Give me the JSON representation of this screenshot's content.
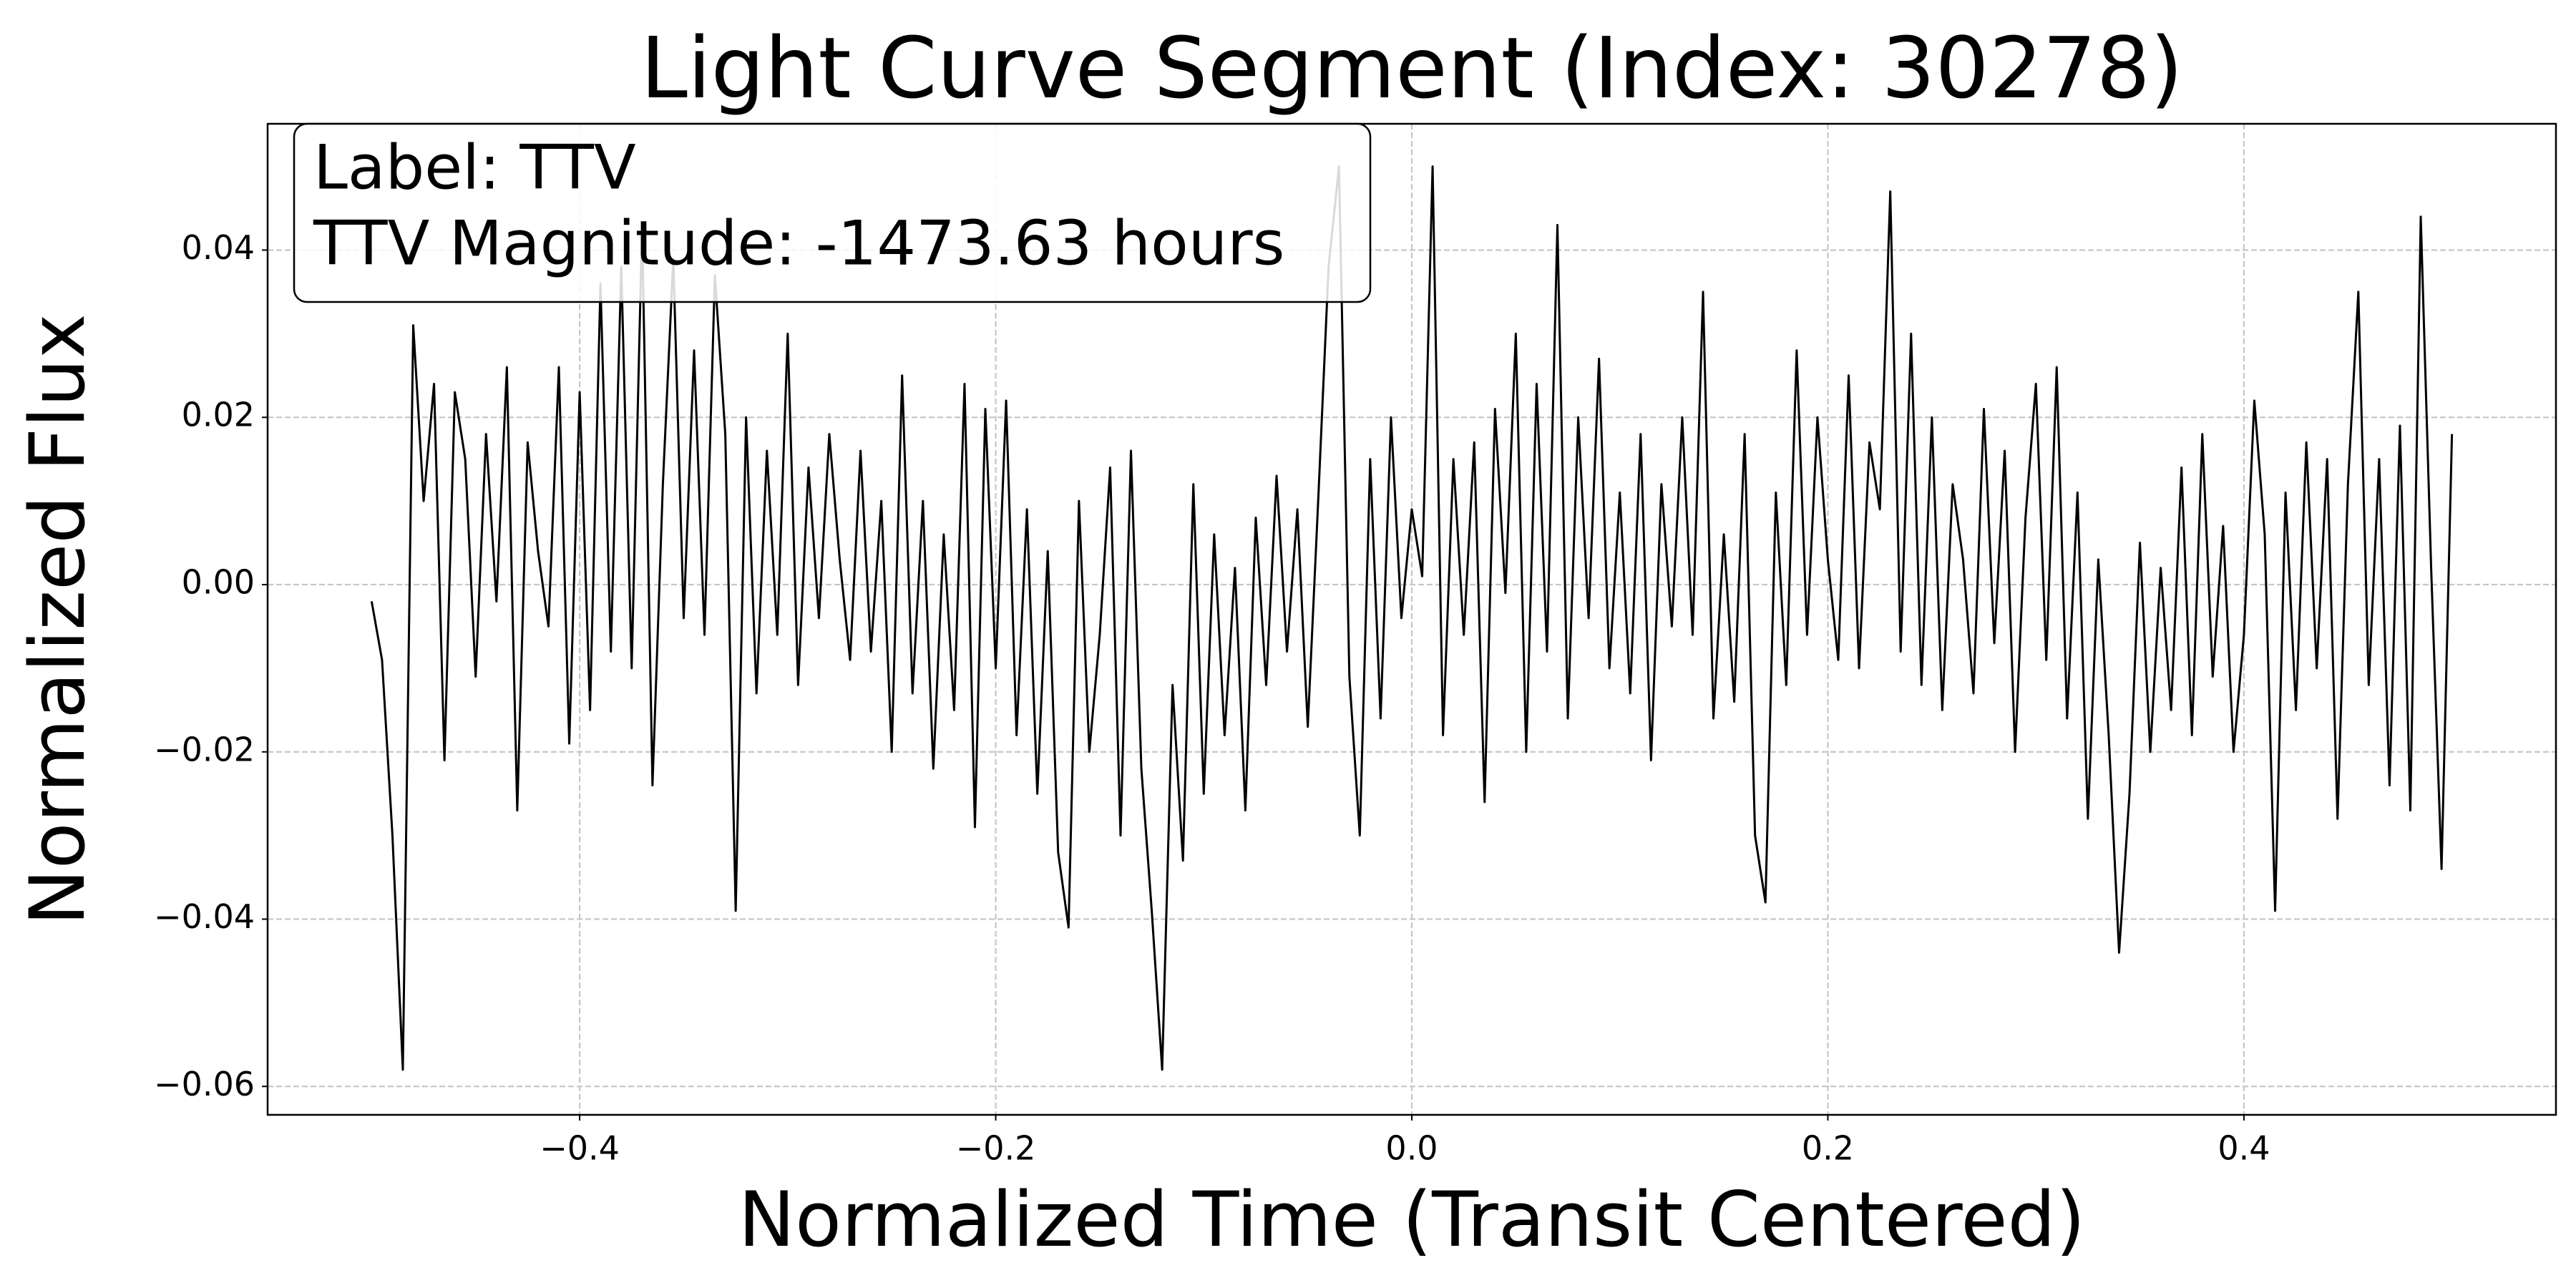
{
  "chart_data": {
    "type": "line",
    "title": "Light Curve Segment (Index: 30278)",
    "x_label": "Normalized Time (Transit Centered)",
    "y_label": "Normalized Flux",
    "annotations": [
      "Label: TTV",
      "TTV Magnitude: -1473.63 hours"
    ],
    "color": "#000000",
    "grid": true,
    "xlim": [
      -0.55,
      0.55
    ],
    "ylim": [
      -0.0634,
      0.0551
    ],
    "xticks": [
      {
        "value": -0.4,
        "label": "−0.4"
      },
      {
        "value": -0.2,
        "label": "−0.2"
      },
      {
        "value": 0,
        "label": "0.0"
      },
      0.2,
      0.4
    ],
    "yticks": [
      {
        "value": -0.06,
        "label": "−0.06"
      },
      {
        "value": -0.04,
        "label": "−0.04"
      },
      {
        "value": -0.02,
        "label": "−0.02"
      },
      {
        "value": 0,
        "label": "0.00"
      },
      0.02,
      0.04
    ],
    "x": [
      -0.5,
      -0.495,
      -0.49,
      -0.485,
      -0.48,
      -0.475,
      -0.47,
      -0.465,
      -0.46,
      -0.455,
      -0.45,
      -0.445,
      -0.44,
      -0.435,
      -0.43,
      -0.425,
      -0.42,
      -0.415,
      -0.41,
      -0.405,
      -0.4,
      -0.395,
      -0.39,
      -0.385,
      -0.38,
      -0.375,
      -0.37,
      -0.365,
      -0.36,
      -0.355,
      -0.35,
      -0.345,
      -0.34,
      -0.335,
      -0.33,
      -0.325,
      -0.32,
      -0.315,
      -0.31,
      -0.305,
      -0.3,
      -0.295,
      -0.29,
      -0.285,
      -0.28,
      -0.275,
      -0.27,
      -0.265,
      -0.26,
      -0.255,
      -0.25,
      -0.245,
      -0.24,
      -0.235,
      -0.23,
      -0.225,
      -0.22,
      -0.215,
      -0.21,
      -0.205,
      -0.2,
      -0.195,
      -0.19,
      -0.185,
      -0.18,
      -0.175,
      -0.17,
      -0.165,
      -0.16,
      -0.155,
      -0.15,
      -0.145,
      -0.14,
      -0.135,
      -0.13,
      -0.125,
      -0.12,
      -0.115,
      -0.11,
      -0.105,
      -0.1,
      -0.095,
      -0.09,
      -0.085,
      -0.08,
      -0.075,
      -0.07,
      -0.065,
      -0.06,
      -0.055,
      -0.05,
      -0.045,
      -0.04,
      -0.035,
      -0.03,
      -0.025,
      -0.02,
      -0.015,
      -0.01,
      -0.005,
      0,
      0.005,
      0.01,
      0.015,
      0.02,
      0.025,
      0.03,
      0.035,
      0.04,
      0.045,
      0.05,
      0.055,
      0.06,
      0.065,
      0.07,
      0.075,
      0.08,
      0.085,
      0.09,
      0.095,
      0.1,
      0.105,
      0.11,
      0.115,
      0.12,
      0.125,
      0.13,
      0.135,
      0.14,
      0.145,
      0.15,
      0.155,
      0.16,
      0.165,
      0.17,
      0.175,
      0.18,
      0.185,
      0.19,
      0.195,
      0.2,
      0.205,
      0.21,
      0.215,
      0.22,
      0.225,
      0.23,
      0.235,
      0.24,
      0.245,
      0.25,
      0.255,
      0.26,
      0.265,
      0.27,
      0.275,
      0.28,
      0.285,
      0.29,
      0.295,
      0.3,
      0.305,
      0.31,
      0.315,
      0.32,
      0.325,
      0.33,
      0.335,
      0.34,
      0.345,
      0.35,
      0.355,
      0.36,
      0.365,
      0.37,
      0.375,
      0.38,
      0.385,
      0.39,
      0.395,
      0.4,
      0.405,
      0.41,
      0.415,
      0.42,
      0.425,
      0.43,
      0.435,
      0.44,
      0.445,
      0.45,
      0.455,
      0.46,
      0.465,
      0.47,
      0.475,
      0.48,
      0.485,
      0.49,
      0.495,
      0.5
    ],
    "values": [
      -0.002,
      -0.009,
      -0.03,
      -0.058,
      0.031,
      0.01,
      0.024,
      -0.021,
      0.023,
      0.015,
      -0.011,
      0.018,
      -0.002,
      0.026,
      -0.027,
      0.017,
      0.004,
      -0.005,
      0.026,
      -0.019,
      0.023,
      -0.015,
      0.036,
      -0.008,
      0.038,
      -0.01,
      0.043,
      -0.024,
      0.012,
      0.039,
      -0.004,
      0.028,
      -0.006,
      0.037,
      0.018,
      -0.039,
      0.02,
      -0.013,
      0.016,
      -0.006,
      0.03,
      -0.012,
      0.014,
      -0.004,
      0.018,
      0.003,
      -0.009,
      0.016,
      -0.008,
      0.01,
      -0.02,
      0.025,
      -0.013,
      0.01,
      -0.022,
      0.006,
      -0.015,
      0.024,
      -0.029,
      0.021,
      -0.01,
      0.022,
      -0.018,
      0.009,
      -0.025,
      0.004,
      -0.032,
      -0.041,
      0.01,
      -0.02,
      -0.006,
      0.014,
      -0.03,
      0.016,
      -0.022,
      -0.039,
      -0.058,
      -0.012,
      -0.033,
      0.012,
      -0.025,
      0.006,
      -0.018,
      0.002,
      -0.027,
      0.008,
      -0.012,
      0.013,
      -0.008,
      0.009,
      -0.017,
      0.01,
      0.038,
      0.05,
      -0.011,
      -0.03,
      0.015,
      -0.016,
      0.02,
      -0.004,
      0.009,
      0.001,
      0.05,
      -0.018,
      0.015,
      -0.006,
      0.017,
      -0.026,
      0.021,
      -0.001,
      0.03,
      -0.02,
      0.024,
      -0.008,
      0.043,
      -0.016,
      0.02,
      -0.004,
      0.027,
      -0.01,
      0.011,
      -0.013,
      0.018,
      -0.021,
      0.012,
      -0.005,
      0.02,
      -0.006,
      0.035,
      -0.016,
      0.006,
      -0.014,
      0.018,
      -0.03,
      -0.038,
      0.011,
      -0.012,
      0.028,
      -0.006,
      0.02,
      0.003,
      -0.009,
      0.025,
      -0.01,
      0.017,
      0.009,
      0.047,
      -0.008,
      0.03,
      -0.012,
      0.02,
      -0.015,
      0.012,
      0.003,
      -0.013,
      0.021,
      -0.007,
      0.016,
      -0.02,
      0.008,
      0.024,
      -0.009,
      0.026,
      -0.016,
      0.011,
      -0.028,
      0.003,
      -0.018,
      -0.044,
      -0.025,
      0.005,
      -0.02,
      0.002,
      -0.015,
      0.014,
      -0.018,
      0.018,
      -0.011,
      0.007,
      -0.02,
      -0.006,
      0.022,
      0.006,
      -0.039,
      0.011,
      -0.015,
      0.017,
      -0.01,
      0.015,
      -0.028,
      0.012,
      0.035,
      -0.012,
      0.015,
      -0.024,
      0.019,
      -0.027,
      0.044,
      0.002,
      -0.034,
      0.018
    ]
  }
}
